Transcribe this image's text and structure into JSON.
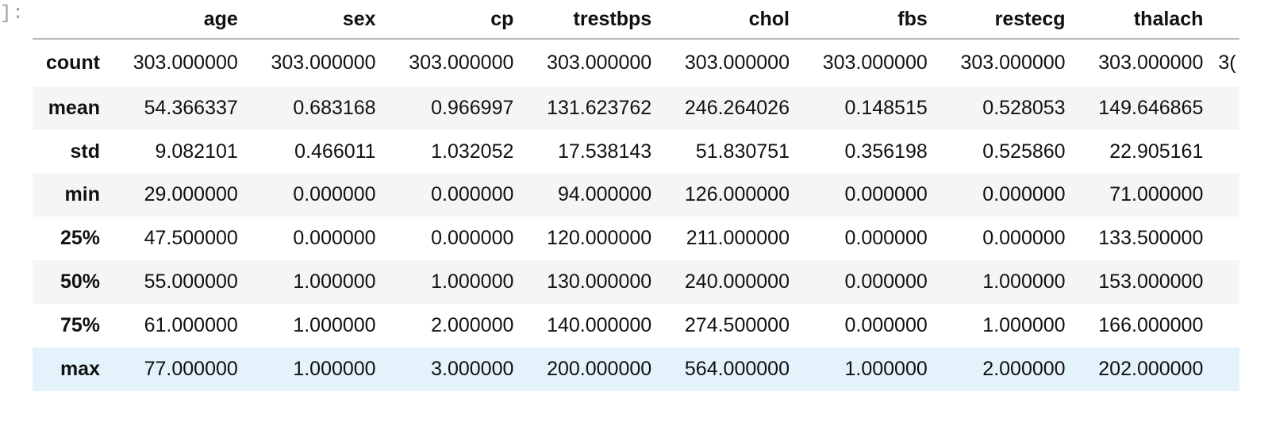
{
  "prompt": "]:",
  "columns": [
    "age",
    "sex",
    "cp",
    "trestbps",
    "chol",
    "fbs",
    "restecg",
    "thalach"
  ],
  "rows": [
    {
      "label": "count",
      "values": [
        "303.000000",
        "303.000000",
        "303.000000",
        "303.000000",
        "303.000000",
        "303.000000",
        "303.000000",
        "303.000000"
      ],
      "cut": "3("
    },
    {
      "label": "mean",
      "values": [
        "54.366337",
        "0.683168",
        "0.966997",
        "131.623762",
        "246.264026",
        "0.148515",
        "0.528053",
        "149.646865"
      ],
      "cut": ""
    },
    {
      "label": "std",
      "values": [
        "9.082101",
        "0.466011",
        "1.032052",
        "17.538143",
        "51.830751",
        "0.356198",
        "0.525860",
        "22.905161"
      ],
      "cut": ""
    },
    {
      "label": "min",
      "values": [
        "29.000000",
        "0.000000",
        "0.000000",
        "94.000000",
        "126.000000",
        "0.000000",
        "0.000000",
        "71.000000"
      ],
      "cut": ""
    },
    {
      "label": "25%",
      "values": [
        "47.500000",
        "0.000000",
        "0.000000",
        "120.000000",
        "211.000000",
        "0.000000",
        "0.000000",
        "133.500000"
      ],
      "cut": ""
    },
    {
      "label": "50%",
      "values": [
        "55.000000",
        "1.000000",
        "1.000000",
        "130.000000",
        "240.000000",
        "0.000000",
        "1.000000",
        "153.000000"
      ],
      "cut": ""
    },
    {
      "label": "75%",
      "values": [
        "61.000000",
        "1.000000",
        "2.000000",
        "140.000000",
        "274.500000",
        "0.000000",
        "1.000000",
        "166.000000"
      ],
      "cut": ""
    },
    {
      "label": "max",
      "values": [
        "77.000000",
        "1.000000",
        "3.000000",
        "200.000000",
        "564.000000",
        "1.000000",
        "2.000000",
        "202.000000"
      ],
      "cut": ""
    }
  ],
  "highlighted_row": "max",
  "colors": {
    "header_rule": "#b9b9b9",
    "stripe": "#f5f5f5",
    "hover": "#e3f2fb",
    "prompt": "#9e9e9e"
  }
}
